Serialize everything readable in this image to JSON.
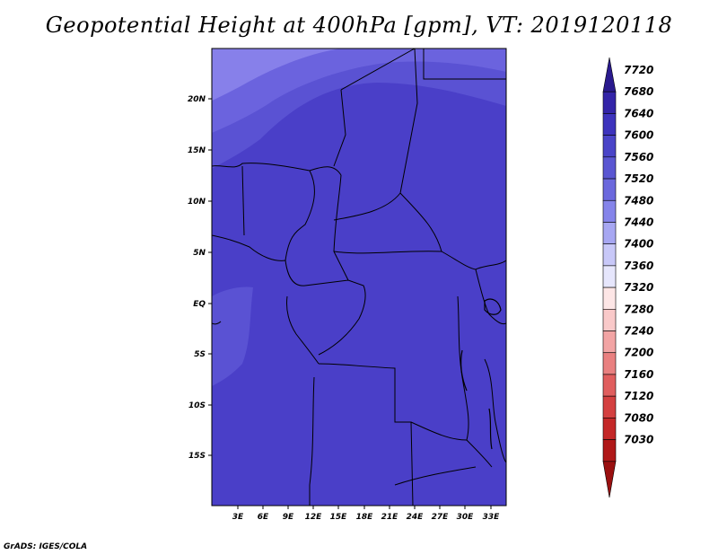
{
  "title": "Geopotential Height at 400hPa [gpm], VT: 2019120118",
  "credit": "GrADS: IGES/COLA",
  "map": {
    "lat_ticks": [
      "20N",
      "15N",
      "10N",
      "5N",
      "EQ",
      "5S",
      "10S",
      "15S"
    ],
    "lon_ticks": [
      "3E",
      "6E",
      "9E",
      "12E",
      "15E",
      "18E",
      "21E",
      "24E",
      "27E",
      "30E",
      "33E"
    ],
    "background_color": "#4a3fc8"
  },
  "colorbar": {
    "levels": [
      "7720",
      "7680",
      "7640",
      "7600",
      "7560",
      "7520",
      "7480",
      "7440",
      "7400",
      "7360",
      "7320",
      "7280",
      "7240",
      "7200",
      "7160",
      "7120",
      "7080",
      "7030"
    ],
    "colors": [
      "#2a1a8e",
      "#3324a8",
      "#3d33bd",
      "#4a44c8",
      "#5a56d2",
      "#6b68dd",
      "#8584ea",
      "#a7a7f2",
      "#c8c8f8",
      "#e6e6fc",
      "#fde6e6",
      "#f9c9c9",
      "#f2a4a4",
      "#e98080",
      "#e05e5e",
      "#d44040",
      "#c42828",
      "#b01818",
      "#9a1010"
    ]
  }
}
